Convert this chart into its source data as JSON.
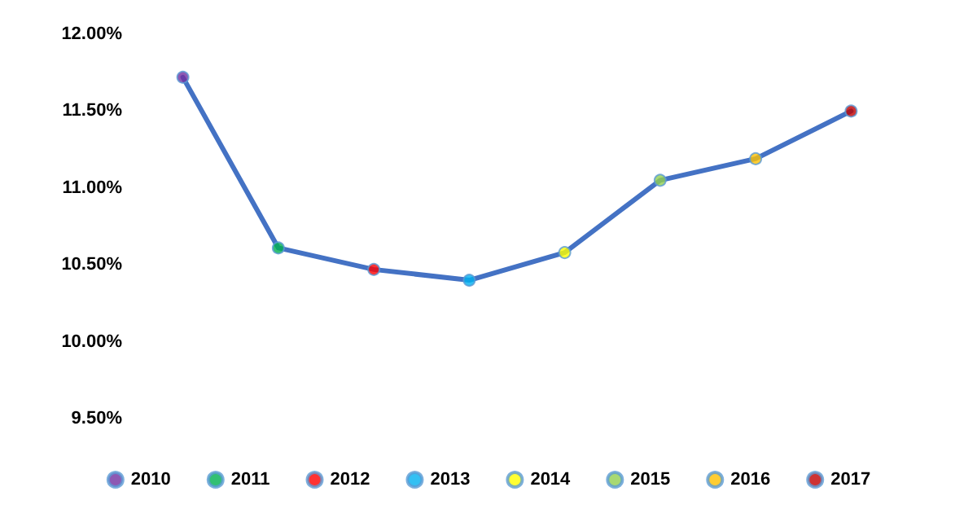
{
  "chart_data": {
    "type": "line",
    "categories": [
      null,
      null,
      null,
      null,
      null,
      null,
      null,
      null
    ],
    "series": [
      {
        "color": "#4472c4",
        "marker": "none",
        "values": [
          11.72,
          10.61,
          10.47,
          10.4,
          10.58,
          11.05,
          11.19,
          11.5
        ]
      },
      {
        "type": "scatter",
        "name": "2010",
        "color": "#7030a0",
        "values": [
          11.72,
          null,
          null,
          null,
          null,
          null,
          null,
          null
        ]
      },
      {
        "type": "scatter",
        "name": "2011",
        "color": "#00b050",
        "values": [
          null,
          10.61,
          null,
          null,
          null,
          null,
          null,
          null
        ]
      },
      {
        "type": "scatter",
        "name": "2012",
        "color": "#ff0000",
        "values": [
          null,
          null,
          10.47,
          null,
          null,
          null,
          null,
          null
        ]
      },
      {
        "type": "scatter",
        "name": "2013",
        "color": "#00b0f0",
        "values": [
          null,
          null,
          null,
          10.4,
          null,
          null,
          null,
          null
        ]
      },
      {
        "type": "scatter",
        "name": "2014",
        "color": "#ffff00",
        "values": [
          null,
          null,
          null,
          null,
          10.58,
          null,
          null,
          null
        ]
      },
      {
        "type": "scatter",
        "name": "2015",
        "color": "#92d050",
        "values": [
          null,
          null,
          null,
          null,
          null,
          11.05,
          null,
          null
        ]
      },
      {
        "type": "scatter",
        "name": "2016",
        "color": "#ffc000",
        "values": [
          null,
          null,
          null,
          null,
          null,
          null,
          11.19,
          null
        ]
      },
      {
        "type": "scatter",
        "name": "2017",
        "color": "#c00000",
        "values": [
          null,
          null,
          null,
          null,
          null,
          null,
          null,
          11.5
        ]
      }
    ],
    "ylim": [
      9.5,
      12
    ],
    "yticks": [
      {
        "value": 9.5,
        "label": "9.50%"
      },
      {
        "value": 10,
        "label": "10.00%"
      },
      {
        "value": 10.5,
        "label": "10.50%"
      },
      {
        "value": 11,
        "label": "11.00%"
      },
      {
        "value": 11.5,
        "label": "11.50%"
      },
      {
        "value": 12,
        "label": "12.00%"
      }
    ],
    "tick_labels": "y",
    "grid": false,
    "legend": "bottom",
    "marker": "circle",
    "line_style": "solid"
  }
}
